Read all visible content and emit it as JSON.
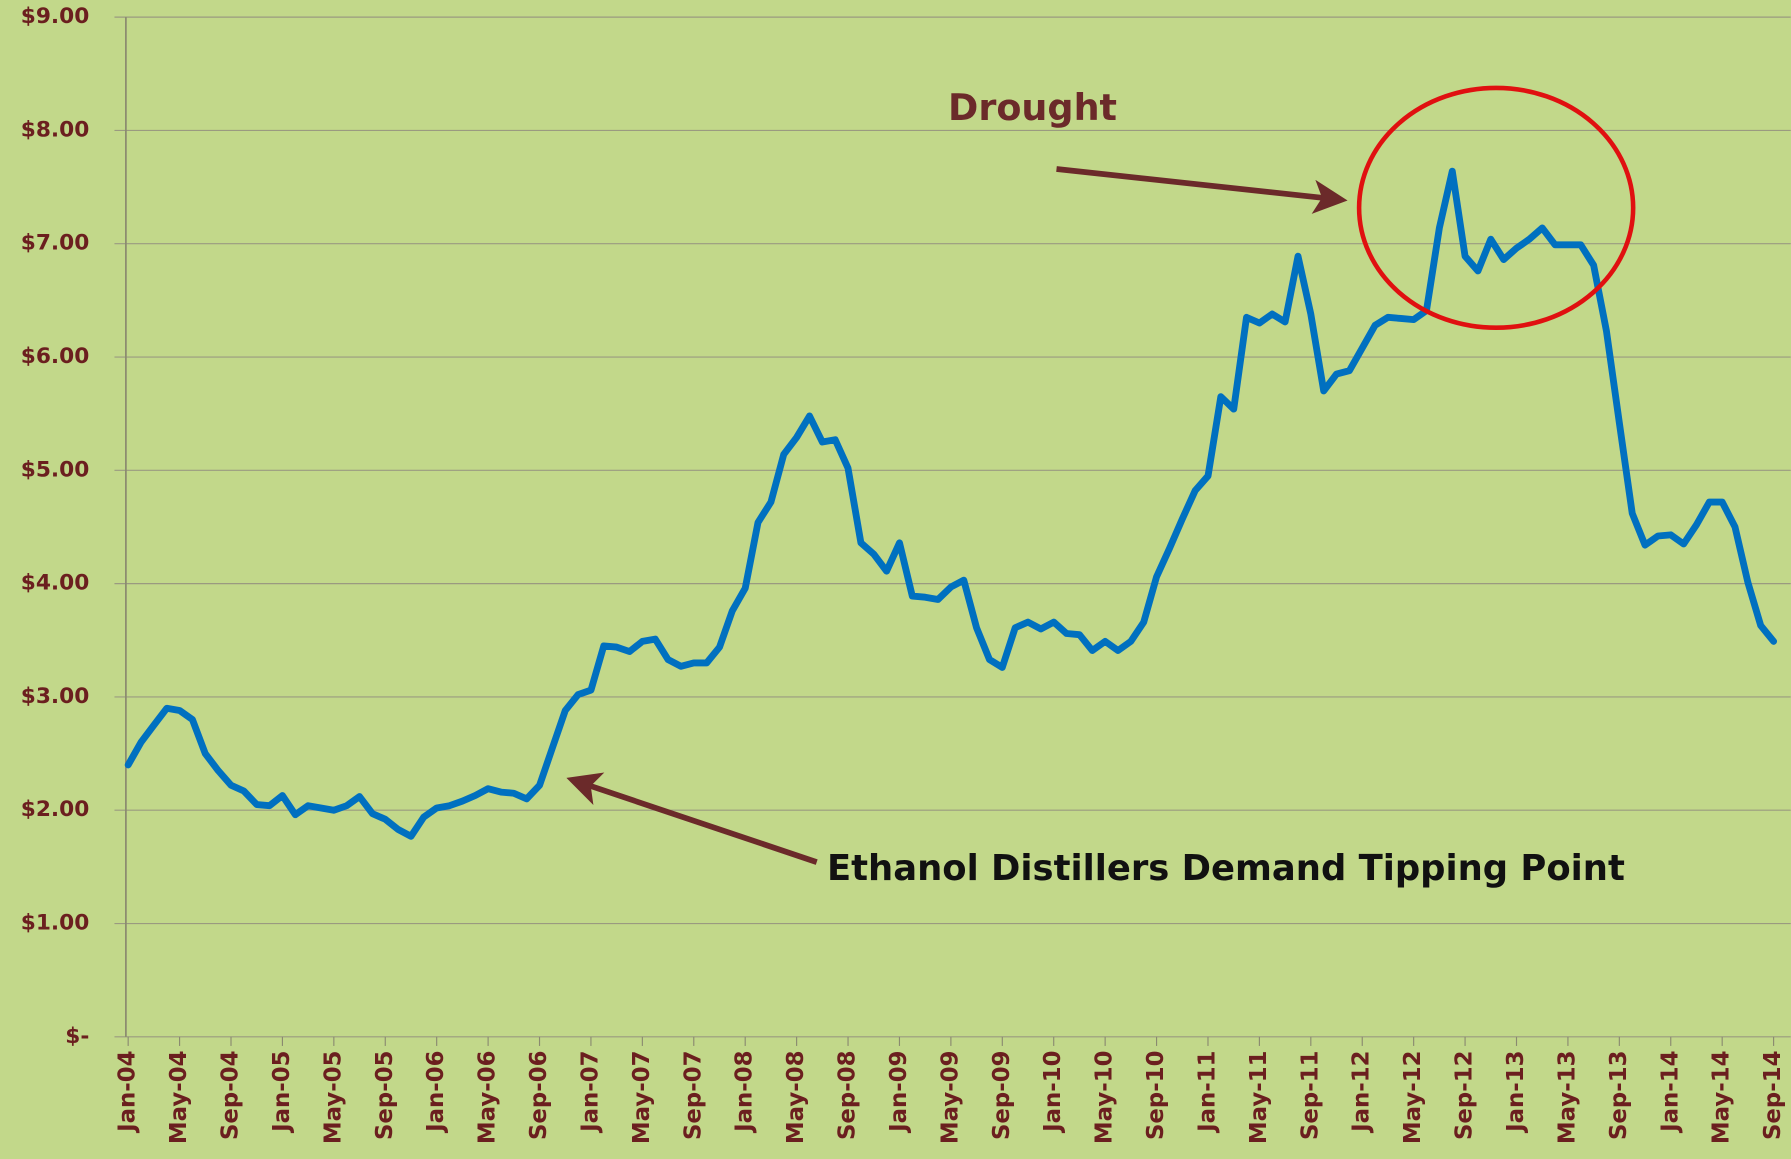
{
  "chart_data": {
    "type": "line",
    "categories": [
      "Jan-04",
      null,
      null,
      null,
      "May-04",
      null,
      null,
      null,
      "Sep-04",
      null,
      null,
      null,
      "Jan-05",
      null,
      null,
      null,
      "May-05",
      null,
      null,
      null,
      "Sep-05",
      null,
      null,
      null,
      "Jan-06",
      null,
      null,
      null,
      "May-06",
      null,
      null,
      null,
      "Sep-06",
      null,
      null,
      null,
      "Jan-07",
      null,
      null,
      null,
      "May-07",
      null,
      null,
      null,
      "Sep-07",
      null,
      null,
      null,
      "Jan-08",
      null,
      null,
      null,
      "May-08",
      null,
      null,
      null,
      "Sep-08",
      null,
      null,
      null,
      "Jan-09",
      null,
      null,
      null,
      "May-09",
      null,
      null,
      null,
      "Sep-09",
      null,
      null,
      null,
      "Jan-10",
      null,
      null,
      null,
      "May-10",
      null,
      null,
      null,
      "Sep-10",
      null,
      null,
      null,
      "Jan-11",
      null,
      null,
      null,
      "May-11",
      null,
      null,
      null,
      "Sep-11",
      null,
      null,
      null,
      "Jan-12",
      null,
      null,
      null,
      "May-12",
      null,
      null,
      null,
      "Sep-12",
      null,
      null,
      null,
      "Jan-13",
      null,
      null,
      null,
      "May-13",
      null,
      null,
      null,
      "Sep-13",
      null,
      null,
      null,
      "Jan-14",
      null,
      null,
      null,
      "May-14",
      null,
      null,
      null,
      "Sep-14"
    ],
    "series": [
      {
        "color": "#0070c0",
        "values": [
          2.4,
          2.6,
          2.75,
          2.9,
          2.88,
          2.8,
          2.5,
          2.35,
          2.22,
          2.17,
          2.05,
          2.04,
          2.13,
          1.96,
          2.04,
          2.02,
          2.0,
          2.04,
          2.12,
          1.97,
          1.92,
          1.83,
          1.77,
          1.94,
          2.02,
          2.04,
          2.08,
          2.13,
          2.19,
          2.16,
          2.15,
          2.1,
          2.22,
          2.55,
          2.88,
          3.02,
          3.06,
          3.45,
          3.44,
          3.4,
          3.49,
          3.51,
          3.33,
          3.27,
          3.3,
          3.3,
          3.44,
          3.76,
          3.96,
          4.54,
          4.72,
          5.14,
          5.29,
          5.48,
          5.25,
          5.27,
          5.02,
          4.36,
          4.26,
          4.11,
          4.36,
          3.89,
          3.88,
          3.86,
          3.97,
          4.03,
          3.61,
          3.33,
          3.26,
          3.61,
          3.66,
          3.6,
          3.66,
          3.56,
          3.55,
          3.41,
          3.49,
          3.41,
          3.49,
          3.66,
          4.06,
          4.31,
          4.57,
          4.82,
          4.95,
          5.65,
          5.54,
          6.35,
          6.3,
          6.38,
          6.31,
          6.89,
          6.38,
          5.7,
          5.85,
          5.88,
          6.08,
          6.28,
          6.35,
          6.34,
          6.33,
          6.41,
          7.14,
          7.64,
          6.89,
          6.76,
          7.04,
          6.86,
          6.96,
          7.04,
          7.14,
          6.99,
          6.99,
          6.99,
          6.81,
          6.23,
          5.42,
          4.62,
          4.34,
          4.42,
          4.43,
          4.35,
          4.52,
          4.72,
          4.72,
          4.5,
          4.01,
          3.63,
          3.49
        ]
      }
    ],
    "ylim": [
      0,
      9
    ],
    "yticks": [
      {
        "value": 0,
        "label": "$-"
      },
      {
        "value": 1,
        "label": "$1.00"
      },
      {
        "value": 2,
        "label": "$2.00"
      },
      {
        "value": 3,
        "label": "$3.00"
      },
      {
        "value": 4,
        "label": "$4.00"
      },
      {
        "value": 5,
        "label": "$5.00"
      },
      {
        "value": 6,
        "label": "$6.00"
      },
      {
        "value": 7,
        "label": "$7.00"
      },
      {
        "value": 8,
        "label": "$8.00"
      },
      {
        "value": 9,
        "label": "$9.00"
      }
    ],
    "grid": true,
    "annotations": [
      "Drought",
      "Ethanol Distillers Demand Tipping Point"
    ]
  }
}
